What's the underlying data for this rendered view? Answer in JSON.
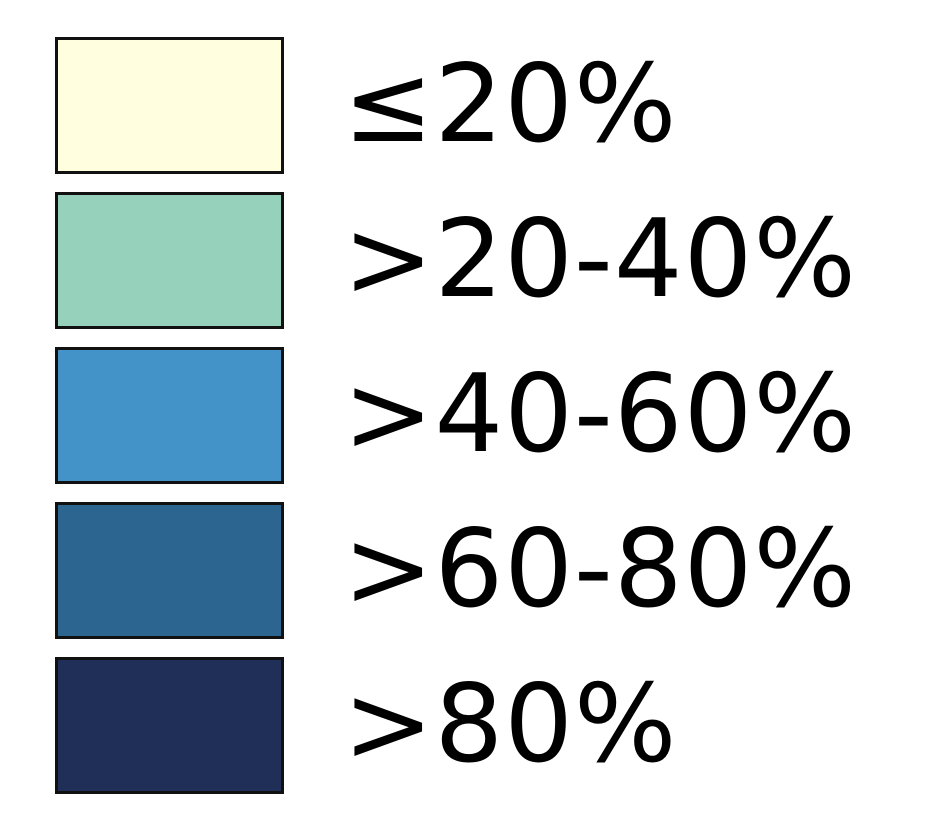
{
  "legend": {
    "items": [
      {
        "label": "≤20%",
        "color": "#FFFFE0"
      },
      {
        "label": ">20-40%",
        "color": "#96D1BC"
      },
      {
        "label": ">40-60%",
        "color": "#4393C9"
      },
      {
        "label": ">60-80%",
        "color": "#2B6590"
      },
      {
        "label": ">80%",
        "color": "#202F58"
      }
    ]
  }
}
